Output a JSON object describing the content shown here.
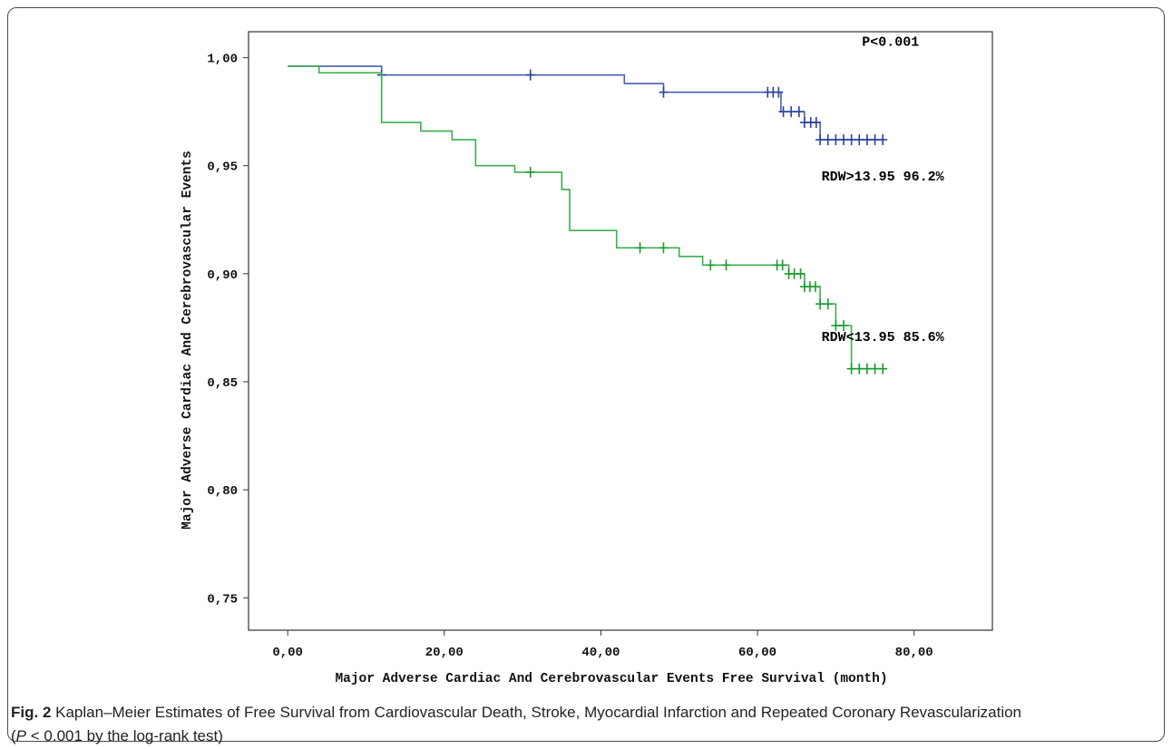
{
  "chart_data": {
    "type": "line",
    "subtype": "kaplan-meier step",
    "xlabel": "Major Adverse Cardiac And Cerebrovascular Events Free Survival (month)",
    "ylabel": "Major Adverse Cardiac And Cerebrovascular Events",
    "xlim": [
      -5,
      90
    ],
    "ylim": [
      0.735,
      1.012
    ],
    "x_ticks": [
      0,
      20,
      40,
      60,
      80
    ],
    "x_tick_labels": [
      "0,00",
      "20,00",
      "40,00",
      "60,00",
      "80,00"
    ],
    "y_ticks": [
      1.0,
      0.95,
      0.9,
      0.85,
      0.8,
      0.75
    ],
    "y_tick_labels": [
      "1,00",
      "0,95",
      "0,90",
      "0,85",
      "0,80",
      "0,75"
    ],
    "grid": false,
    "legend": "none",
    "annotations": [
      {
        "text": "P<0.001",
        "x": 77,
        "y": 1.0055
      },
      {
        "text": "RDW>13.95 96.2%",
        "x": 76,
        "y": 0.9432
      },
      {
        "text": "RDW<13.95 85.6%",
        "x": 76,
        "y": 0.8688
      }
    ],
    "series": [
      {
        "color": "#4a5fb0",
        "censor_color": "#2c3f9c",
        "steps": [
          [
            0,
            0.996
          ],
          [
            12,
            0.992
          ],
          [
            43,
            0.988
          ],
          [
            48,
            0.984
          ],
          [
            63,
            0.975
          ],
          [
            66,
            0.97
          ],
          [
            68,
            0.962
          ],
          [
            76,
            0.962
          ]
        ],
        "censored": [
          [
            12,
            0.992
          ],
          [
            31,
            0.992
          ],
          [
            48,
            0.984
          ],
          [
            61.3,
            0.984
          ],
          [
            62,
            0.984
          ],
          [
            62.7,
            0.984
          ],
          [
            63.3,
            0.975
          ],
          [
            64.3,
            0.975
          ],
          [
            65.3,
            0.975
          ],
          [
            66,
            0.97
          ],
          [
            66.8,
            0.97
          ],
          [
            67.5,
            0.97
          ],
          [
            68,
            0.962
          ],
          [
            69,
            0.962
          ],
          [
            70,
            0.962
          ],
          [
            71,
            0.962
          ],
          [
            72,
            0.962
          ],
          [
            73,
            0.962
          ],
          [
            74,
            0.962
          ],
          [
            75,
            0.962
          ],
          [
            76,
            0.962
          ]
        ]
      },
      {
        "color": "#3cae4e",
        "censor_color": "#1a9c2c",
        "steps": [
          [
            0,
            0.996
          ],
          [
            4,
            0.993
          ],
          [
            12,
            0.97
          ],
          [
            17,
            0.966
          ],
          [
            21,
            0.962
          ],
          [
            24,
            0.95
          ],
          [
            29,
            0.947
          ],
          [
            35,
            0.939
          ],
          [
            36,
            0.92
          ],
          [
            42,
            0.912
          ],
          [
            50,
            0.908
          ],
          [
            53,
            0.904
          ],
          [
            63,
            0.904
          ],
          [
            64,
            0.9
          ],
          [
            66,
            0.894
          ],
          [
            68,
            0.886
          ],
          [
            70,
            0.876
          ],
          [
            72,
            0.856
          ],
          [
            76,
            0.856
          ]
        ],
        "censored": [
          [
            31,
            0.947
          ],
          [
            45,
            0.912
          ],
          [
            48,
            0.912
          ],
          [
            54,
            0.904
          ],
          [
            56,
            0.904
          ],
          [
            62.5,
            0.904
          ],
          [
            63.2,
            0.904
          ],
          [
            64,
            0.9
          ],
          [
            64.7,
            0.9
          ],
          [
            65.5,
            0.9
          ],
          [
            66,
            0.894
          ],
          [
            66.7,
            0.894
          ],
          [
            67.4,
            0.894
          ],
          [
            68,
            0.886
          ],
          [
            69,
            0.886
          ],
          [
            70,
            0.876
          ],
          [
            71,
            0.876
          ],
          [
            72,
            0.856
          ],
          [
            73,
            0.856
          ],
          [
            74,
            0.856
          ],
          [
            75,
            0.856
          ],
          [
            76,
            0.856
          ]
        ]
      }
    ]
  },
  "caption": {
    "fig_label": "Fig. 2",
    "text": " Kaplan–Meier Estimates of Free Survival from Cardiovascular Death, Stroke, Myocardial Infarction and Repeated Coronary Revascularization",
    "line2_open": "(",
    "p_symbol": "P",
    "line2_rest": " < 0.001 by the log-rank test)"
  }
}
